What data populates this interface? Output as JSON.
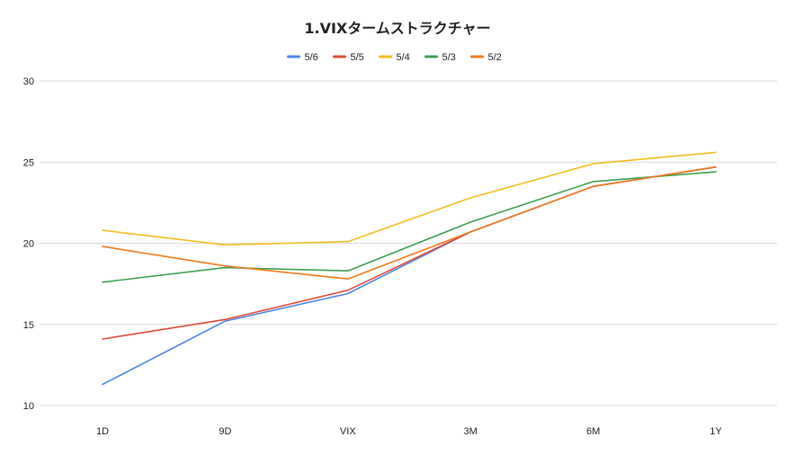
{
  "chart_data": {
    "type": "line",
    "title": "1.VIXタームストラクチャー",
    "categories": [
      "1D",
      "9D",
      "VIX",
      "3M",
      "6M",
      "1Y"
    ],
    "ylim": [
      10,
      30
    ],
    "yticks": [
      10,
      15,
      20,
      25,
      30
    ],
    "grid": true,
    "legend": "top",
    "series": [
      {
        "name": "5/6",
        "color": "#4a86e8",
        "values": [
          11.3,
          15.2,
          16.9,
          20.7,
          23.5,
          24.7
        ]
      },
      {
        "name": "5/5",
        "color": "#dc4a38",
        "values": [
          14.1,
          15.3,
          17.1,
          20.7,
          23.5,
          24.7
        ]
      },
      {
        "name": "5/4",
        "color": "#f2be1e",
        "values": [
          20.8,
          19.9,
          20.1,
          22.8,
          24.9,
          25.6
        ]
      },
      {
        "name": "5/3",
        "color": "#3d9e50",
        "values": [
          17.6,
          18.5,
          18.3,
          21.3,
          23.8,
          24.4
        ]
      },
      {
        "name": "5/2",
        "color": "#f07a1c",
        "values": [
          19.8,
          18.6,
          17.8,
          20.7,
          23.5,
          24.7
        ]
      }
    ]
  }
}
